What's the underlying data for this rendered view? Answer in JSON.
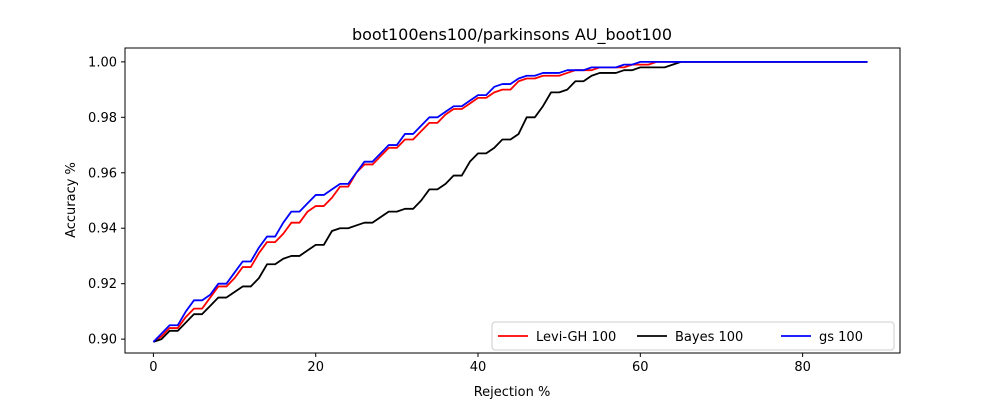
{
  "chart_data": {
    "type": "line",
    "title": "boot100ens100/parkinsons AU_boot100",
    "xlabel": "Rejection %",
    "ylabel": "Accuracy %",
    "xlim": [
      -3.5,
      92
    ],
    "ylim": [
      0.895,
      1.005
    ],
    "xticks": [
      0,
      20,
      40,
      60,
      80
    ],
    "xtick_labels": [
      "0",
      "20",
      "40",
      "60",
      "80"
    ],
    "yticks": [
      0.9,
      0.92,
      0.94,
      0.96,
      0.98,
      1.0
    ],
    "ytick_labels": [
      "0.90",
      "0.92",
      "0.94",
      "0.96",
      "0.98",
      "1.00"
    ],
    "grid": false,
    "legend_position": "bottom-right",
    "series": [
      {
        "name": "Levi-GH 100",
        "color": "#ff0000",
        "x": [
          0,
          1,
          2,
          3,
          4,
          5,
          6,
          7,
          8,
          9,
          10,
          11,
          12,
          13,
          14,
          15,
          16,
          17,
          18,
          19,
          20,
          21,
          22,
          23,
          24,
          25,
          26,
          27,
          28,
          29,
          30,
          31,
          32,
          33,
          34,
          35,
          36,
          37,
          38,
          39,
          40,
          41,
          42,
          43,
          44,
          45,
          46,
          47,
          48,
          49,
          50,
          51,
          52,
          53,
          54,
          55,
          56,
          57,
          58,
          59,
          60,
          61,
          62,
          63,
          64,
          65,
          66,
          67,
          68,
          69,
          70,
          71,
          72,
          73,
          74,
          75,
          76,
          77,
          78,
          79,
          80,
          81,
          82,
          83,
          84,
          85,
          86,
          87,
          88
        ],
        "values": [
          0.899,
          0.901,
          0.904,
          0.904,
          0.908,
          0.911,
          0.911,
          0.915,
          0.919,
          0.919,
          0.922,
          0.926,
          0.926,
          0.931,
          0.935,
          0.935,
          0.938,
          0.942,
          0.942,
          0.946,
          0.948,
          0.948,
          0.951,
          0.955,
          0.955,
          0.96,
          0.963,
          0.963,
          0.966,
          0.969,
          0.969,
          0.972,
          0.972,
          0.975,
          0.978,
          0.978,
          0.981,
          0.983,
          0.983,
          0.985,
          0.987,
          0.987,
          0.989,
          0.99,
          0.99,
          0.993,
          0.994,
          0.994,
          0.995,
          0.995,
          0.995,
          0.996,
          0.997,
          0.997,
          0.997,
          0.998,
          0.998,
          0.998,
          0.998,
          0.999,
          0.999,
          0.999,
          1.0,
          1.0,
          1.0,
          1.0,
          1.0,
          1.0,
          1.0,
          1.0,
          1.0,
          1.0,
          1.0,
          1.0,
          1.0,
          1.0,
          1.0,
          1.0,
          1.0,
          1.0,
          1.0,
          1.0,
          1.0,
          1.0,
          1.0,
          1.0,
          1.0,
          1.0,
          1.0
        ]
      },
      {
        "name": "Bayes 100",
        "color": "#000000",
        "x": [
          0,
          1,
          2,
          3,
          4,
          5,
          6,
          7,
          8,
          9,
          10,
          11,
          12,
          13,
          14,
          15,
          16,
          17,
          18,
          19,
          20,
          21,
          22,
          23,
          24,
          25,
          26,
          27,
          28,
          29,
          30,
          31,
          32,
          33,
          34,
          35,
          36,
          37,
          38,
          39,
          40,
          41,
          42,
          43,
          44,
          45,
          46,
          47,
          48,
          49,
          50,
          51,
          52,
          53,
          54,
          55,
          56,
          57,
          58,
          59,
          60,
          61,
          62,
          63,
          64,
          65,
          66,
          67,
          68,
          69,
          70,
          71,
          72,
          73,
          74,
          75,
          76,
          77,
          78,
          79,
          80,
          81,
          82,
          83,
          84,
          85,
          86,
          87,
          88
        ],
        "values": [
          0.899,
          0.9,
          0.903,
          0.903,
          0.906,
          0.909,
          0.909,
          0.912,
          0.915,
          0.915,
          0.917,
          0.919,
          0.919,
          0.922,
          0.927,
          0.927,
          0.929,
          0.93,
          0.93,
          0.932,
          0.934,
          0.934,
          0.939,
          0.94,
          0.94,
          0.941,
          0.942,
          0.942,
          0.944,
          0.946,
          0.946,
          0.947,
          0.947,
          0.95,
          0.954,
          0.954,
          0.956,
          0.959,
          0.959,
          0.964,
          0.967,
          0.967,
          0.969,
          0.972,
          0.972,
          0.974,
          0.98,
          0.98,
          0.984,
          0.989,
          0.989,
          0.99,
          0.993,
          0.993,
          0.995,
          0.996,
          0.996,
          0.996,
          0.997,
          0.997,
          0.998,
          0.998,
          0.998,
          0.998,
          0.999,
          1.0,
          1.0,
          1.0,
          1.0,
          1.0,
          1.0,
          1.0,
          1.0,
          1.0,
          1.0,
          1.0,
          1.0,
          1.0,
          1.0,
          1.0,
          1.0,
          1.0,
          1.0,
          1.0,
          1.0,
          1.0,
          1.0,
          1.0,
          1.0
        ]
      },
      {
        "name": "gs 100",
        "color": "#0000ff",
        "x": [
          0,
          1,
          2,
          3,
          4,
          5,
          6,
          7,
          8,
          9,
          10,
          11,
          12,
          13,
          14,
          15,
          16,
          17,
          18,
          19,
          20,
          21,
          22,
          23,
          24,
          25,
          26,
          27,
          28,
          29,
          30,
          31,
          32,
          33,
          34,
          35,
          36,
          37,
          38,
          39,
          40,
          41,
          42,
          43,
          44,
          45,
          46,
          47,
          48,
          49,
          50,
          51,
          52,
          53,
          54,
          55,
          56,
          57,
          58,
          59,
          60,
          61,
          62,
          63,
          64,
          65,
          66,
          67,
          68,
          69,
          70,
          71,
          72,
          73,
          74,
          75,
          76,
          77,
          78,
          79,
          80,
          81,
          82,
          83,
          84,
          85,
          86,
          87,
          88
        ],
        "values": [
          0.899,
          0.902,
          0.905,
          0.905,
          0.91,
          0.914,
          0.914,
          0.916,
          0.92,
          0.92,
          0.924,
          0.928,
          0.928,
          0.933,
          0.937,
          0.937,
          0.942,
          0.946,
          0.946,
          0.949,
          0.952,
          0.952,
          0.954,
          0.956,
          0.956,
          0.96,
          0.964,
          0.964,
          0.967,
          0.97,
          0.97,
          0.974,
          0.974,
          0.977,
          0.98,
          0.98,
          0.982,
          0.984,
          0.984,
          0.986,
          0.988,
          0.988,
          0.991,
          0.992,
          0.992,
          0.994,
          0.995,
          0.995,
          0.996,
          0.996,
          0.996,
          0.997,
          0.997,
          0.997,
          0.998,
          0.998,
          0.998,
          0.998,
          0.999,
          0.999,
          1.0,
          1.0,
          1.0,
          1.0,
          1.0,
          1.0,
          1.0,
          1.0,
          1.0,
          1.0,
          1.0,
          1.0,
          1.0,
          1.0,
          1.0,
          1.0,
          1.0,
          1.0,
          1.0,
          1.0,
          1.0,
          1.0,
          1.0,
          1.0,
          1.0,
          1.0,
          1.0,
          1.0,
          1.0
        ]
      }
    ]
  }
}
